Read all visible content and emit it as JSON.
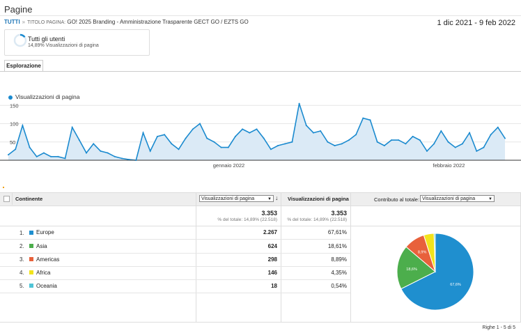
{
  "page": {
    "title": "Pagine"
  },
  "breadcrumb": {
    "root": "TUTTI",
    "separator": "»",
    "dimension_label": "TITOLO PAGINA:",
    "value": "GO! 2025 Branding - Amministrazione Trasparente GECT GO / EZTS GO"
  },
  "date_range": "1 dic 2021 - 9 feb 2022",
  "segment": {
    "name": "Tutti gli utenti",
    "subtitle": "14,89% Visualizzazioni di pagina",
    "share": 0.1489,
    "ring_color": "#1a8acf"
  },
  "tabs": [
    {
      "label": "Esplorazione"
    }
  ],
  "chart_data": {
    "type": "area",
    "series": [
      {
        "name": "Visualizzazioni di pagina",
        "color": "#1a8acf",
        "values": [
          15,
          30,
          95,
          35,
          10,
          20,
          10,
          10,
          5,
          90,
          55,
          20,
          45,
          25,
          20,
          10,
          5,
          2,
          0,
          75,
          25,
          65,
          70,
          45,
          30,
          60,
          85,
          100,
          60,
          50,
          35,
          35,
          65,
          85,
          75,
          85,
          60,
          30,
          40,
          45,
          50,
          155,
          95,
          75,
          80,
          50,
          40,
          45,
          55,
          70,
          115,
          110,
          50,
          40,
          55,
          55,
          45,
          65,
          55,
          25,
          45,
          80,
          50,
          35,
          45,
          75,
          25,
          35,
          70,
          90,
          60
        ]
      }
    ],
    "yticks": [
      50,
      100,
      150
    ],
    "ylim": [
      0,
      160
    ],
    "x_labels": [
      {
        "label": "gennaio 2022",
        "index": 31
      },
      {
        "label": "febbraio 2022",
        "index": 62
      }
    ],
    "grid": true
  },
  "table": {
    "headers": {
      "continent": "Continente",
      "metric_select": "Visualizzazioni di pagina",
      "metric_col": "Visualizzazioni di pagina",
      "contrib_label": "Contributo al totale:",
      "contrib_select": "Visualizzazioni di pagina"
    },
    "totals": {
      "value1": "3.353",
      "sub1": "% del totale: 14,89% (22.518)",
      "value2": "3.353",
      "sub2": "% del totale: 14,89% (22.518)"
    },
    "rows": [
      {
        "num": "1.",
        "name": "Europe",
        "value": "2.267",
        "pct": "67,61%",
        "color": "#1f8fcf",
        "share": 0.6761,
        "pie_label": "67,6%"
      },
      {
        "num": "2.",
        "name": "Asia",
        "value": "624",
        "pct": "18,61%",
        "color": "#4cae4c",
        "share": 0.1861,
        "pie_label": "18,6%"
      },
      {
        "num": "3.",
        "name": "Americas",
        "value": "298",
        "pct": "8,89%",
        "color": "#e8613b",
        "share": 0.0889,
        "pie_label": "8,9%"
      },
      {
        "num": "4.",
        "name": "Africa",
        "value": "146",
        "pct": "4,35%",
        "color": "#f2e31c",
        "share": 0.0435,
        "pie_label": ""
      },
      {
        "num": "5.",
        "name": "Oceania",
        "value": "18",
        "pct": "0,54%",
        "color": "#4fc4d6",
        "share": 0.0054,
        "pie_label": ""
      }
    ]
  },
  "footer": {
    "rows_label": "Righe 1 - 5 di 5"
  }
}
